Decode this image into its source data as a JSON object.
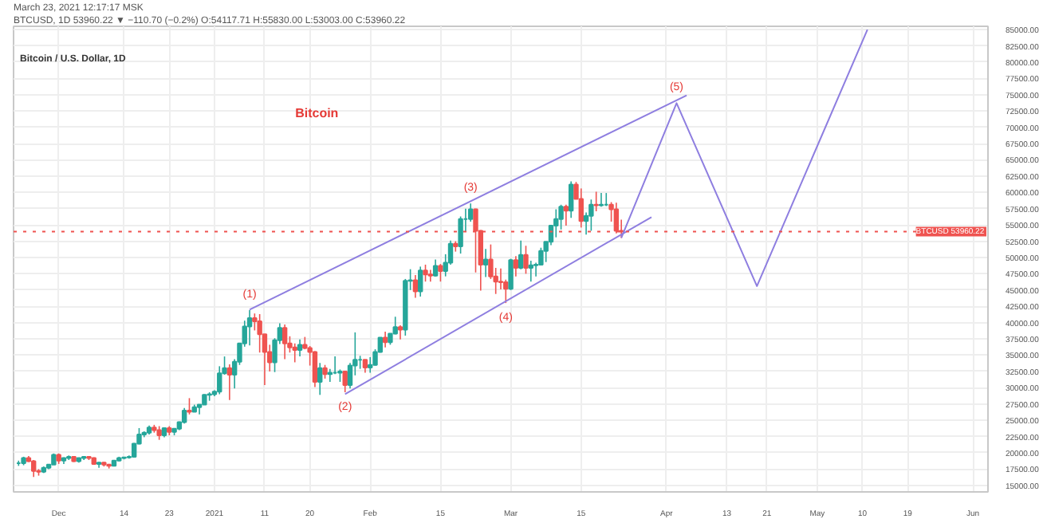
{
  "chart_data": {
    "type": "candlestick",
    "title": "Bitcoin / U.S. Dollar, 1D",
    "annotations": [
      "March 23, 2021 12:17:17 MSK",
      "BTCUSD, 1D 53960.22 ▼ −110.70 (−0.2%) O:54117.71 H:55830.00 L:53003.00 C:53960.22",
      "Bitcoin",
      {
        "text": "(1)",
        "x": "2021-01-08",
        "y": 41900
      },
      {
        "text": "(2)",
        "x": "2021-01-27",
        "y": 29300
      },
      {
        "text": "(3)",
        "x": "2021-02-21",
        "y": 58300
      },
      {
        "text": "(4)",
        "x": "2021-02-28",
        "y": 43000
      },
      {
        "text": "(5)",
        "x": "2021-04-03",
        "y": 73700
      }
    ],
    "x": [
      "2020-11-23",
      "2020-11-24",
      "2020-11-25",
      "2020-11-26",
      "2020-11-27",
      "2020-11-28",
      "2020-11-29",
      "2020-11-30",
      "2020-12-01",
      "2020-12-02",
      "2020-12-03",
      "2020-12-04",
      "2020-12-05",
      "2020-12-06",
      "2020-12-07",
      "2020-12-08",
      "2020-12-09",
      "2020-12-10",
      "2020-12-11",
      "2020-12-12",
      "2020-12-13",
      "2020-12-14",
      "2020-12-15",
      "2020-12-16",
      "2020-12-17",
      "2020-12-18",
      "2020-12-19",
      "2020-12-20",
      "2020-12-21",
      "2020-12-22",
      "2020-12-23",
      "2020-12-24",
      "2020-12-25",
      "2020-12-26",
      "2020-12-27",
      "2020-12-28",
      "2020-12-29",
      "2020-12-30",
      "2020-12-31",
      "2021-01-01",
      "2021-01-02",
      "2021-01-03",
      "2021-01-04",
      "2021-01-05",
      "2021-01-06",
      "2021-01-07",
      "2021-01-08",
      "2021-01-09",
      "2021-01-10",
      "2021-01-11",
      "2021-01-12",
      "2021-01-13",
      "2021-01-14",
      "2021-01-15",
      "2021-01-16",
      "2021-01-17",
      "2021-01-18",
      "2021-01-19",
      "2021-01-20",
      "2021-01-21",
      "2021-01-22",
      "2021-01-23",
      "2021-01-24",
      "2021-01-25",
      "2021-01-26",
      "2021-01-27",
      "2021-01-28",
      "2021-01-29",
      "2021-01-30",
      "2021-01-31",
      "2021-02-01",
      "2021-02-02",
      "2021-02-03",
      "2021-02-04",
      "2021-02-05",
      "2021-02-06",
      "2021-02-07",
      "2021-02-08",
      "2021-02-09",
      "2021-02-10",
      "2021-02-11",
      "2021-02-12",
      "2021-02-13",
      "2021-02-14",
      "2021-02-15",
      "2021-02-16",
      "2021-02-17",
      "2021-02-18",
      "2021-02-19",
      "2021-02-20",
      "2021-02-21",
      "2021-02-22",
      "2021-02-23",
      "2021-02-24",
      "2021-02-25",
      "2021-02-26",
      "2021-02-27",
      "2021-02-28",
      "2021-03-01",
      "2021-03-02",
      "2021-03-03",
      "2021-03-04",
      "2021-03-05",
      "2021-03-06",
      "2021-03-07",
      "2021-03-08",
      "2021-03-09",
      "2021-03-10",
      "2021-03-11",
      "2021-03-12",
      "2021-03-13",
      "2021-03-14",
      "2021-03-15",
      "2021-03-16",
      "2021-03-17",
      "2021-03-18",
      "2021-03-19",
      "2021-03-20",
      "2021-03-21",
      "2021-03-22",
      "2021-03-23"
    ],
    "ohlc": [
      [
        18400,
        18800,
        18000,
        18400
      ],
      [
        18400,
        19400,
        18100,
        19200
      ],
      [
        19200,
        19500,
        18600,
        18700
      ],
      [
        18700,
        18900,
        16300,
        17200
      ],
      [
        17200,
        17500,
        16500,
        17100
      ],
      [
        17100,
        17900,
        16900,
        17700
      ],
      [
        17700,
        18300,
        17500,
        18200
      ],
      [
        18200,
        19900,
        18200,
        19700
      ],
      [
        19700,
        19900,
        18300,
        18800
      ],
      [
        18800,
        19300,
        18300,
        19200
      ],
      [
        19200,
        19600,
        18900,
        19400
      ],
      [
        19400,
        19500,
        18600,
        18700
      ],
      [
        18700,
        19200,
        18500,
        19200
      ],
      [
        19200,
        19400,
        18900,
        19400
      ],
      [
        19400,
        19400,
        18900,
        19200
      ],
      [
        19200,
        19300,
        18200,
        18300
      ],
      [
        18300,
        18600,
        17700,
        18500
      ],
      [
        18500,
        18600,
        17900,
        18200
      ],
      [
        18200,
        18300,
        17600,
        18000
      ],
      [
        18000,
        18900,
        18000,
        18800
      ],
      [
        18800,
        19400,
        18700,
        19200
      ],
      [
        19200,
        19300,
        19000,
        19300
      ],
      [
        19300,
        19600,
        19100,
        19400
      ],
      [
        19400,
        21500,
        19300,
        21400
      ],
      [
        21400,
        23800,
        21300,
        22800
      ],
      [
        22800,
        23300,
        22400,
        23100
      ],
      [
        23100,
        24200,
        22800,
        23900
      ],
      [
        23900,
        24300,
        23100,
        23500
      ],
      [
        23500,
        24100,
        22000,
        22700
      ],
      [
        22700,
        23900,
        22400,
        23800
      ],
      [
        23800,
        24100,
        22700,
        23200
      ],
      [
        23200,
        23800,
        22700,
        23700
      ],
      [
        23700,
        24800,
        23500,
        24700
      ],
      [
        24700,
        26900,
        24500,
        26500
      ],
      [
        26500,
        28400,
        25900,
        26300
      ],
      [
        26300,
        27400,
        26300,
        27000
      ],
      [
        27000,
        27400,
        25900,
        27400
      ],
      [
        27400,
        29000,
        27400,
        28900
      ],
      [
        28900,
        29300,
        28000,
        29000
      ],
      [
        29000,
        29600,
        28700,
        29400
      ],
      [
        29400,
        33300,
        29000,
        32200
      ],
      [
        32200,
        34800,
        32000,
        33000
      ],
      [
        33000,
        33600,
        28100,
        32000
      ],
      [
        32000,
        34400,
        29900,
        34000
      ],
      [
        34000,
        36900,
        33500,
        36800
      ],
      [
        36800,
        40300,
        36300,
        39400
      ],
      [
        39400,
        41900,
        36500,
        40700
      ],
      [
        40700,
        41400,
        38800,
        40200
      ],
      [
        40200,
        41300,
        35400,
        38200
      ],
      [
        38200,
        38200,
        30400,
        35500
      ],
      [
        35500,
        36600,
        32500,
        33900
      ],
      [
        33900,
        37600,
        32400,
        37300
      ],
      [
        37300,
        39900,
        36700,
        39200
      ],
      [
        39200,
        39700,
        34400,
        36800
      ],
      [
        36800,
        37900,
        35400,
        36200
      ],
      [
        36200,
        36800,
        33900,
        35800
      ],
      [
        35800,
        37400,
        34800,
        36600
      ],
      [
        36600,
        37800,
        35900,
        36100
      ],
      [
        36100,
        36400,
        33400,
        35500
      ],
      [
        35500,
        35600,
        30100,
        30900
      ],
      [
        30900,
        33800,
        28900,
        33000
      ],
      [
        33000,
        33500,
        31400,
        32100
      ],
      [
        32100,
        32900,
        30900,
        32300
      ],
      [
        32300,
        34800,
        32100,
        32300
      ],
      [
        32300,
        32800,
        30900,
        32500
      ],
      [
        32500,
        32500,
        29300,
        30400
      ],
      [
        30400,
        33800,
        29900,
        33400
      ],
      [
        33400,
        38500,
        31900,
        34300
      ],
      [
        34300,
        34900,
        32900,
        34300
      ],
      [
        34300,
        34300,
        32300,
        33100
      ],
      [
        33100,
        34700,
        32300,
        33500
      ],
      [
        33500,
        35900,
        33400,
        35500
      ],
      [
        35500,
        37700,
        35400,
        37700
      ],
      [
        37700,
        38600,
        36200,
        37000
      ],
      [
        37000,
        38300,
        36600,
        38300
      ],
      [
        38300,
        40900,
        38200,
        39300
      ],
      [
        39300,
        39600,
        37400,
        38900
      ],
      [
        38900,
        46700,
        38000,
        46400
      ],
      [
        46400,
        48200,
        45000,
        46500
      ],
      [
        46500,
        47300,
        43800,
        44800
      ],
      [
        44800,
        48600,
        44000,
        48000
      ],
      [
        48000,
        48900,
        46300,
        47400
      ],
      [
        47400,
        48100,
        46300,
        47200
      ],
      [
        47200,
        49700,
        47100,
        48700
      ],
      [
        48700,
        49000,
        46300,
        47900
      ],
      [
        47900,
        50500,
        47100,
        49200
      ],
      [
        49200,
        52600,
        48900,
        52100
      ],
      [
        52100,
        52500,
        50900,
        51700
      ],
      [
        51700,
        56300,
        50600,
        55900
      ],
      [
        55900,
        57500,
        54000,
        55900
      ],
      [
        55900,
        58300,
        55500,
        57400
      ],
      [
        57400,
        57500,
        47700,
        54100
      ],
      [
        54100,
        54200,
        44900,
        48900
      ],
      [
        48900,
        51300,
        47000,
        49700
      ],
      [
        49700,
        52000,
        46700,
        47100
      ],
      [
        47100,
        48400,
        44400,
        46300
      ],
      [
        46300,
        48300,
        45100,
        46200
      ],
      [
        46200,
        46600,
        43000,
        45200
      ],
      [
        45200,
        49800,
        45000,
        49600
      ],
      [
        49600,
        50200,
        47100,
        48400
      ],
      [
        48400,
        52600,
        48200,
        50400
      ],
      [
        50400,
        51800,
        47500,
        48400
      ],
      [
        48400,
        49500,
        46300,
        48800
      ],
      [
        48800,
        49200,
        47100,
        48900
      ],
      [
        48900,
        51500,
        48900,
        51000
      ],
      [
        51000,
        52400,
        49300,
        52400
      ],
      [
        52400,
        54900,
        51900,
        54900
      ],
      [
        54900,
        57400,
        53100,
        55900
      ],
      [
        55900,
        58100,
        54300,
        57800
      ],
      [
        57800,
        58100,
        54900,
        57200
      ],
      [
        57200,
        61700,
        56100,
        61200
      ],
      [
        61200,
        61600,
        59000,
        59000
      ],
      [
        59000,
        60600,
        54600,
        55600
      ],
      [
        55600,
        56900,
        53500,
        56400
      ],
      [
        56400,
        58900,
        54100,
        58100
      ],
      [
        58100,
        60100,
        57100,
        58000
      ],
      [
        58000,
        59900,
        57800,
        58100
      ],
      [
        58100,
        59900,
        57900,
        58100
      ],
      [
        58100,
        58500,
        55500,
        57400
      ],
      [
        57400,
        58400,
        53700,
        54100
      ],
      [
        54100,
        55800,
        53000,
        53960
      ]
    ],
    "colors": [
      "#26a69a",
      "#26a69a",
      "#ef5350",
      "#ef5350",
      "#ef5350",
      "#26a69a",
      "#26a69a",
      "#26a69a",
      "#ef5350",
      "#26a69a",
      "#26a69a",
      "#ef5350",
      "#26a69a",
      "#26a69a",
      "#ef5350",
      "#ef5350",
      "#26a69a",
      "#ef5350",
      "#ef5350",
      "#26a69a",
      "#26a69a",
      "#26a69a",
      "#26a69a",
      "#26a69a",
      "#26a69a",
      "#26a69a",
      "#26a69a",
      "#ef5350",
      "#ef5350",
      "#26a69a",
      "#ef5350",
      "#26a69a",
      "#26a69a",
      "#26a69a",
      "#ef5350",
      "#26a69a",
      "#26a69a",
      "#26a69a",
      "#26a69a",
      "#26a69a",
      "#26a69a",
      "#26a69a",
      "#ef5350",
      "#26a69a",
      "#26a69a",
      "#26a69a",
      "#26a69a",
      "#ef5350",
      "#ef5350",
      "#ef5350",
      "#ef5350",
      "#26a69a",
      "#26a69a",
      "#ef5350",
      "#ef5350",
      "#ef5350",
      "#26a69a",
      "#ef5350",
      "#ef5350",
      "#ef5350",
      "#26a69a",
      "#ef5350",
      "#26a69a",
      "#26a69a",
      "#26a69a",
      "#ef5350",
      "#26a69a",
      "#26a69a",
      "#26a69a",
      "#ef5350",
      "#26a69a",
      "#26a69a",
      "#26a69a",
      "#ef5350",
      "#26a69a",
      "#26a69a",
      "#ef5350",
      "#26a69a",
      "#26a69a",
      "#ef5350",
      "#26a69a",
      "#ef5350",
      "#ef5350",
      "#26a69a",
      "#ef5350",
      "#26a69a",
      "#26a69a",
      "#ef5350",
      "#26a69a",
      "#26a69a",
      "#26a69a",
      "#ef5350",
      "#ef5350",
      "#26a69a",
      "#ef5350",
      "#ef5350",
      "#ef5350",
      "#ef5350",
      "#26a69a",
      "#ef5350",
      "#26a69a",
      "#ef5350",
      "#26a69a",
      "#26a69a",
      "#26a69a",
      "#26a69a",
      "#26a69a",
      "#26a69a",
      "#26a69a",
      "#ef5350",
      "#26a69a",
      "#ef5350",
      "#ef5350",
      "#26a69a",
      "#26a69a",
      "#ef5350",
      "#26a69a",
      "#26a69a",
      "#ef5350",
      "#ef5350",
      "#ef5350"
    ],
    "series": [
      {
        "type": "line",
        "color": "#8e7ee0",
        "x": [
          "2021-01-08",
          "2021-04-05"
        ],
        "values": [
          42000,
          74900
        ]
      },
      {
        "type": "line",
        "color": "#8e7ee0",
        "x": [
          "2021-01-27",
          "2021-03-29"
        ],
        "values": [
          29000,
          56200
        ]
      },
      {
        "type": "line",
        "color": "#8e7ee0",
        "x": [
          "2021-03-23",
          "2021-04-03",
          "2021-04-19",
          "2021-05-11"
        ],
        "values": [
          53000,
          73700,
          45600,
          85000
        ]
      }
    ],
    "ref_lines": [
      {
        "axis": "y",
        "value": 53960.22,
        "label": "BTCUSD  53960.22",
        "color": "#ef5350",
        "line_style": "dotted"
      }
    ],
    "xlim": [
      "2020-11-22",
      "2021-06-04"
    ],
    "xticks": [
      {
        "value": "2020-12-01",
        "label": "Dec"
      },
      {
        "value": "2020-12-14",
        "label": "14"
      },
      {
        "value": "2020-12-23",
        "label": "23"
      },
      {
        "value": "2021-01-01",
        "label": "2021"
      },
      {
        "value": "2021-01-11",
        "label": "11"
      },
      {
        "value": "2021-01-20",
        "label": "20"
      },
      {
        "value": "2021-02-01",
        "label": "Feb"
      },
      {
        "value": "2021-02-15",
        "label": "15"
      },
      {
        "value": "2021-03-01",
        "label": "Mar"
      },
      {
        "value": "2021-03-15",
        "label": "15"
      },
      {
        "value": "2021-04-01",
        "label": "Apr"
      },
      {
        "value": "2021-04-13",
        "label": "13"
      },
      {
        "value": "2021-04-21",
        "label": "21"
      },
      {
        "value": "2021-05-01",
        "label": "May"
      },
      {
        "value": "2021-05-10",
        "label": "10"
      },
      {
        "value": "2021-05-19",
        "label": "19"
      },
      {
        "value": "2021-06-01",
        "label": "Jun"
      }
    ],
    "ylim": [
      14000,
      85500
    ],
    "yticks": [
      {
        "value": 15000,
        "label": "15000.00"
      },
      {
        "value": 17500,
        "label": "17500.00"
      },
      {
        "value": 20000,
        "label": "20000.00"
      },
      {
        "value": 22500,
        "label": "22500.00"
      },
      {
        "value": 25000,
        "label": "25000.00"
      },
      {
        "value": 27500,
        "label": "27500.00"
      },
      {
        "value": 30000,
        "label": "30000.00"
      },
      {
        "value": 32500,
        "label": "32500.00"
      },
      {
        "value": 35000,
        "label": "35000.00"
      },
      {
        "value": 37500,
        "label": "37500.00"
      },
      {
        "value": 40000,
        "label": "40000.00"
      },
      {
        "value": 42500,
        "label": "42500.00"
      },
      {
        "value": 45000,
        "label": "45000.00"
      },
      {
        "value": 47500,
        "label": "47500.00"
      },
      {
        "value": 50000,
        "label": "50000.00"
      },
      {
        "value": 52500,
        "label": "52500.00"
      },
      {
        "value": 55000,
        "label": "55000.00"
      },
      {
        "value": 57500,
        "label": "57500.00"
      },
      {
        "value": 60000,
        "label": "60000.00"
      },
      {
        "value": 62500,
        "label": "62500.00"
      },
      {
        "value": 65000,
        "label": "65000.00"
      },
      {
        "value": 67500,
        "label": "67500.00"
      },
      {
        "value": 70000,
        "label": "70000.00"
      },
      {
        "value": 72500,
        "label": "72500.00"
      },
      {
        "value": 75000,
        "label": "75000.00"
      },
      {
        "value": 77500,
        "label": "77500.00"
      },
      {
        "value": 80000,
        "label": "80000.00"
      },
      {
        "value": 82500,
        "label": "82500.00"
      },
      {
        "value": 85000,
        "label": "85000.00"
      }
    ],
    "grid": true,
    "line_style": "solid",
    "marker": "none"
  }
}
